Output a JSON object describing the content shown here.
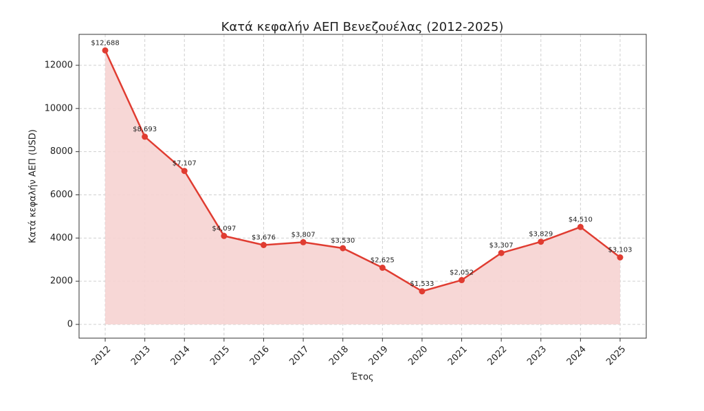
{
  "chart_data": {
    "type": "area-line",
    "title": "Κατά κεφαλήν ΑΕΠ Βενεζουέλας (2012-2025)",
    "x_label": "Έτος",
    "y_label": "Κατά κεφαλήν ΑΕΠ (USD)",
    "x": [
      2012,
      2013,
      2014,
      2015,
      2016,
      2017,
      2018,
      2019,
      2020,
      2021,
      2022,
      2023,
      2024,
      2025
    ],
    "values": [
      12688,
      8693,
      7107,
      4097,
      3676,
      3807,
      3530,
      2625,
      1533,
      2052,
      3307,
      3829,
      4510,
      3103
    ],
    "value_labels": [
      "$12,688",
      "$8,693",
      "$7,107",
      "$4,097",
      "$3,676",
      "$3,807",
      "$3,530",
      "$2,625",
      "$1,533",
      "$2,052",
      "$3,307",
      "$3,829",
      "$4,510",
      "$3,103"
    ],
    "color": "#e03c31",
    "fill_color": "#f6d3d1",
    "xlim": [
      2011.34,
      2025.66
    ],
    "xticks": [
      2012,
      2013,
      2014,
      2015,
      2016,
      2017,
      2018,
      2019,
      2020,
      2021,
      2022,
      2023,
      2024,
      2025
    ],
    "ylim": [
      -637,
      13432
    ],
    "yticks": [
      0,
      2000,
      4000,
      6000,
      8000,
      10000,
      12000
    ],
    "grid": true
  }
}
